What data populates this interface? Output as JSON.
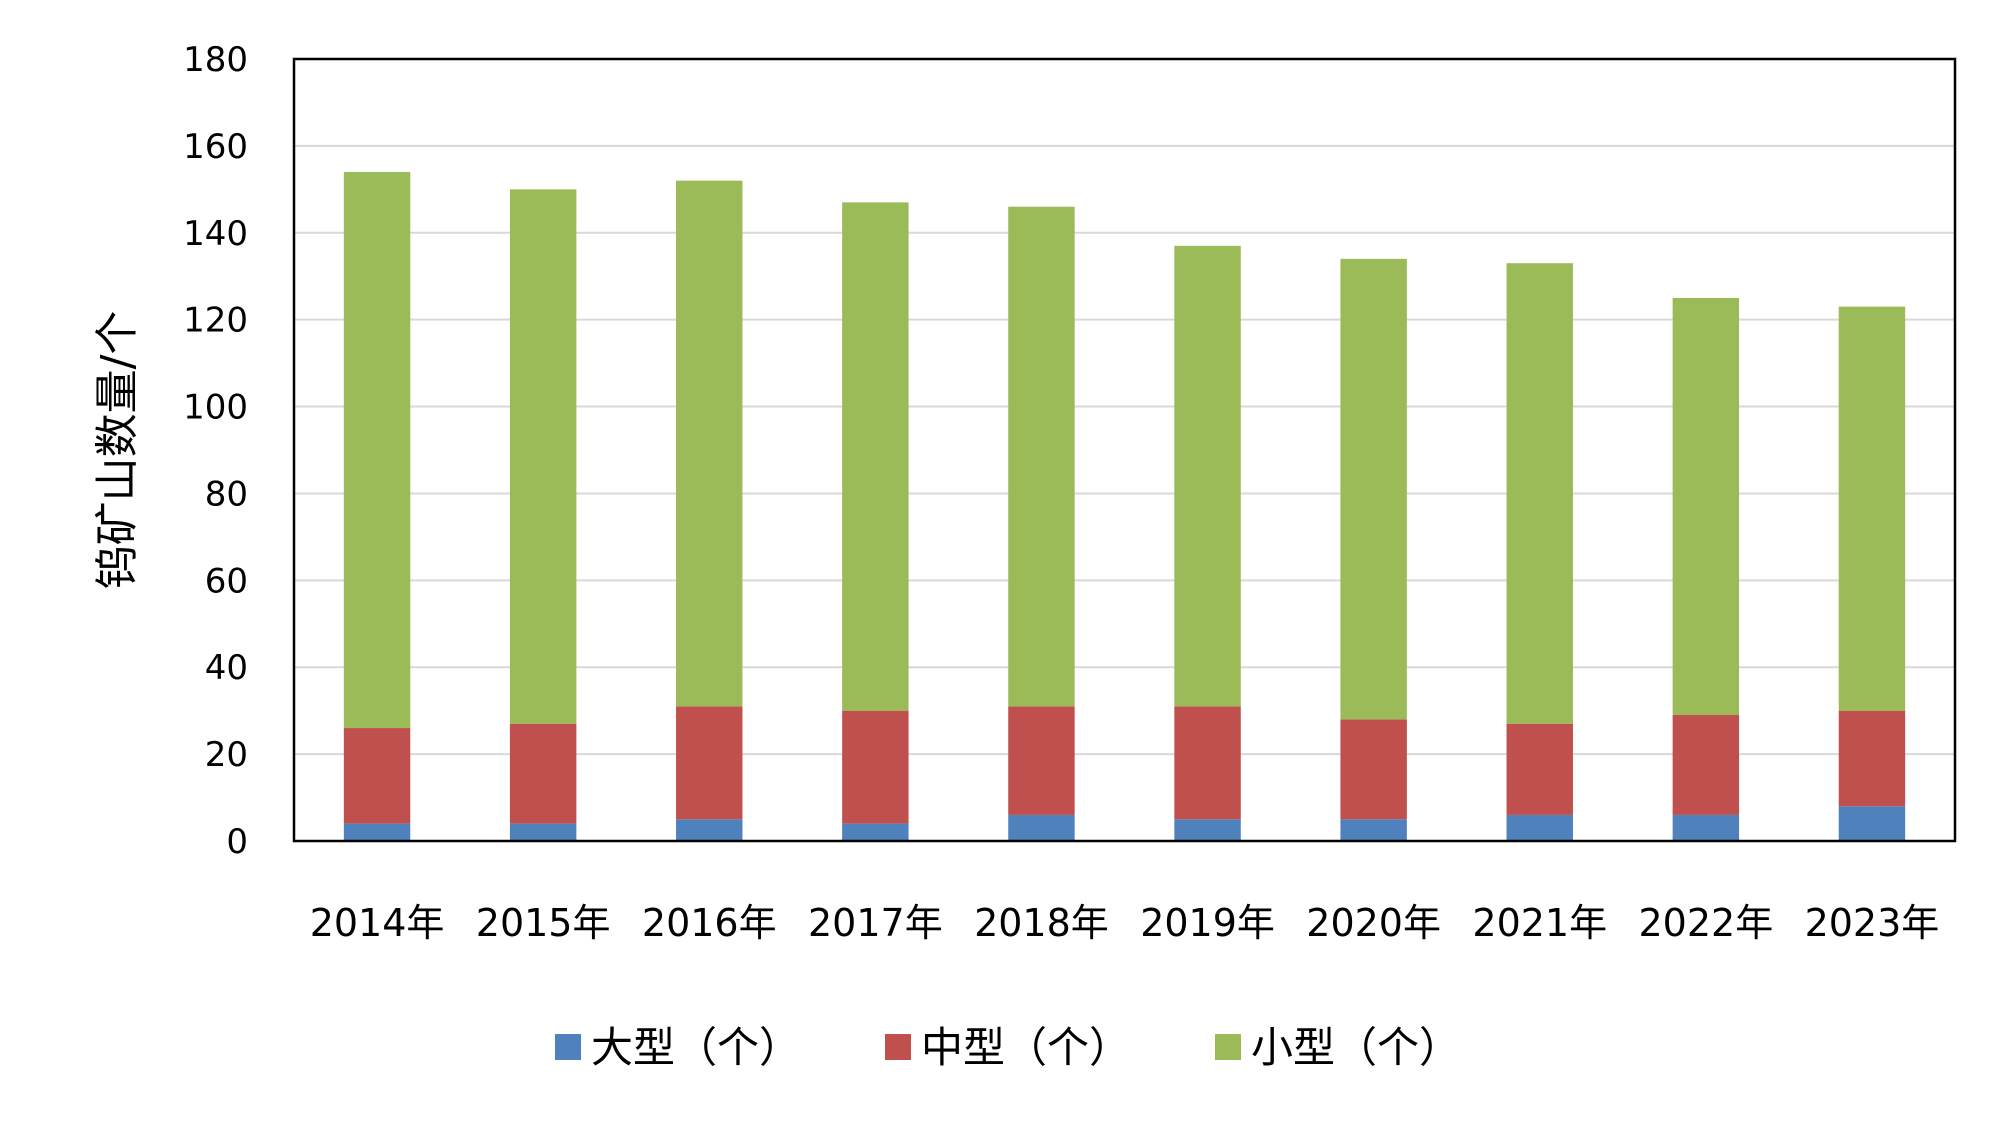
{
  "chart_data": {
    "type": "bar",
    "stacked": true,
    "title": "",
    "xlabel": "",
    "ylabel": "钨矿山数量/个",
    "ylim": [
      0,
      180
    ],
    "yticks": [
      "0",
      "20",
      "40",
      "60",
      "80",
      "100",
      "120",
      "140",
      "160",
      "180"
    ],
    "categories": [
      "2014年",
      "2015年",
      "2016年",
      "2017年",
      "2018年",
      "2019年",
      "2020年",
      "2021年",
      "2022年",
      "2023年"
    ],
    "series": [
      {
        "name": "大型（个）",
        "color": "#4F81BD",
        "values": [
          4,
          4,
          5,
          4,
          6,
          5,
          5,
          6,
          6,
          8
        ]
      },
      {
        "name": "中型（个）",
        "color": "#C0504D",
        "values": [
          22,
          23,
          26,
          26,
          25,
          26,
          23,
          21,
          23,
          22
        ]
      },
      {
        "name": "小型（个）",
        "color": "#9BBB59",
        "values": [
          128,
          123,
          121,
          117,
          115,
          106,
          106,
          106,
          96,
          93
        ]
      }
    ],
    "grid": true,
    "legend_position": "bottom"
  }
}
